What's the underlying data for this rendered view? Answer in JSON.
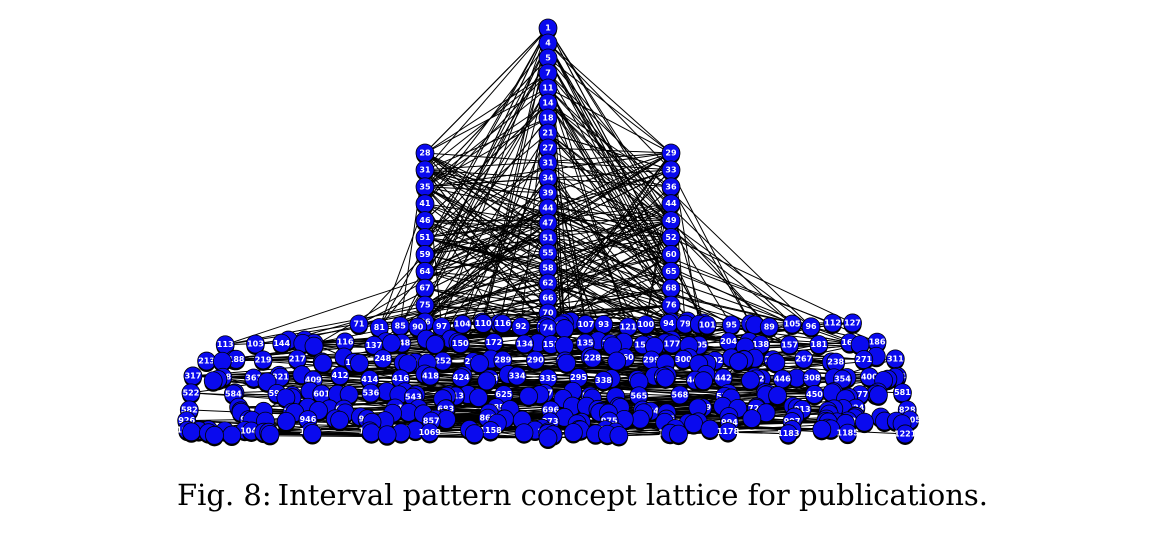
{
  "caption": {
    "prefix": "Fig. 8:",
    "text": "Interval pattern concept lattice for publications."
  },
  "colors": {
    "node_fill": "#0a0aee",
    "node_stroke": "#000000",
    "edge": "#000000",
    "label": "#ffffff"
  },
  "lattice": {
    "columns": [
      {
        "id": "center",
        "labels": [
          "1",
          "4",
          "5",
          "7",
          "11",
          "14",
          "18",
          "21",
          "27",
          "31",
          "34",
          "39",
          "44",
          "47",
          "51",
          "55",
          "58",
          "62",
          "66",
          "70",
          "74"
        ]
      },
      {
        "id": "left",
        "labels": [
          "28",
          "31",
          "35",
          "41",
          "46",
          "51",
          "59",
          "64",
          "67",
          "75",
          "86"
        ]
      },
      {
        "id": "right",
        "labels": [
          "29",
          "33",
          "36",
          "44",
          "49",
          "52",
          "60",
          "65",
          "68",
          "76",
          "88"
        ]
      }
    ],
    "row_labels": [
      [
        "71",
        "81",
        "85",
        "90",
        "97",
        "104",
        "110",
        "116",
        "92",
        "102",
        "98",
        "107",
        "93",
        "121",
        "100",
        "94",
        "79",
        "101",
        "95",
        "84",
        "89",
        "105",
        "96",
        "112",
        "127"
      ],
      [
        "113",
        "103",
        "144",
        "129",
        "116",
        "137",
        "148",
        "170",
        "150",
        "172",
        "134",
        "152",
        "135",
        "176",
        "155",
        "177",
        "205",
        "204",
        "138",
        "157",
        "181",
        "161",
        "186"
      ],
      [
        "213",
        "188",
        "219",
        "217",
        "192",
        "167",
        "248",
        "220",
        "252",
        "223",
        "289",
        "290",
        "291",
        "228",
        "260",
        "299",
        "300",
        "302",
        "233",
        "237",
        "267",
        "238",
        "271",
        "311"
      ],
      [
        "317",
        "318",
        "361",
        "321",
        "409",
        "412",
        "414",
        "416",
        "418",
        "424",
        "478",
        "334",
        "335",
        "295",
        "338",
        "430",
        "436",
        "441",
        "442",
        "392",
        "446",
        "308",
        "354",
        "400",
        "274"
      ],
      [
        "522",
        "584",
        "591",
        "601",
        "536",
        "543",
        "613",
        "625",
        "557",
        "563",
        "565",
        "568",
        "578",
        "582",
        "450",
        "577",
        "581"
      ],
      [
        "582",
        "636",
        "754",
        "671",
        "681",
        "683",
        "685",
        "696",
        "698",
        "624",
        "719",
        "722",
        "813",
        "824",
        "828"
      ],
      [
        "926",
        "937",
        "946",
        "953",
        "857",
        "863",
        "873",
        "975",
        "986",
        "994",
        "997",
        "903",
        "1105"
      ],
      [
        "1039",
        "1046",
        "1055",
        "1062",
        "1069",
        "1158",
        "1162",
        "1164",
        "1172",
        "1178",
        "1183",
        "1185",
        "1221"
      ]
    ]
  }
}
